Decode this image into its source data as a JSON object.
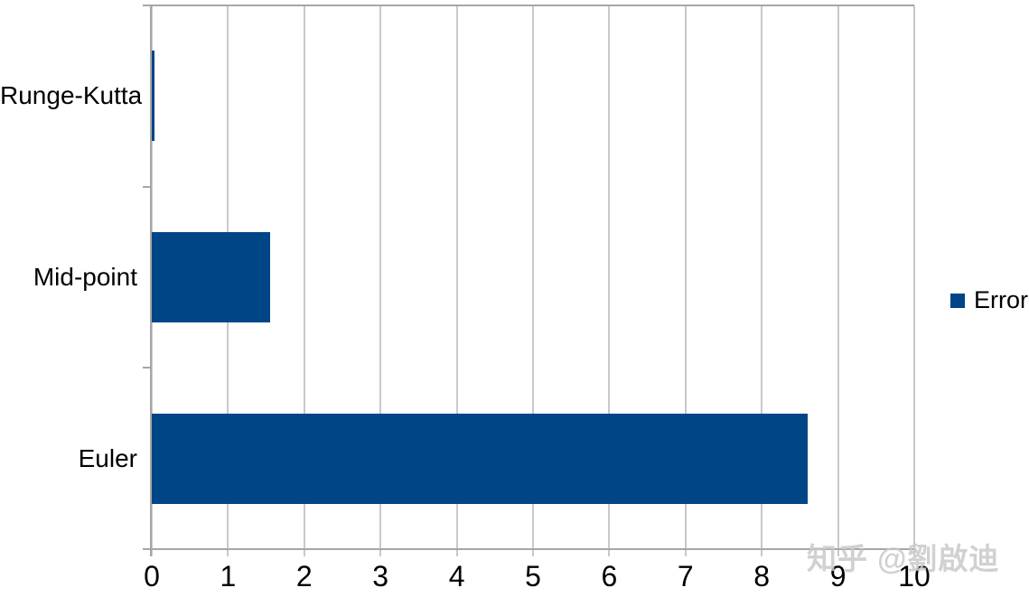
{
  "chart_data": {
    "type": "bar",
    "orientation": "horizontal",
    "title": "",
    "xlabel": "",
    "ylabel": "",
    "categories": [
      "Runge-Kutta",
      "Mid-point",
      "Euler"
    ],
    "series": [
      {
        "name": "Error",
        "values": [
          0.03,
          1.55,
          8.6
        ],
        "color": "#004586"
      }
    ],
    "xlim": [
      0,
      10
    ],
    "x_ticks": [
      0,
      1,
      2,
      3,
      4,
      5,
      6,
      7,
      8,
      9,
      10
    ],
    "grid": "vertical-major",
    "legend_position": "right",
    "plot_background": "#ffffff"
  },
  "colors": {
    "bar": "#004586",
    "axis": "#a6a6a6",
    "grid": "#c9c9c9",
    "text": "#000000",
    "watermark": "#c9c9c9"
  },
  "watermark": {
    "text": "知乎 @劉啟迪"
  }
}
